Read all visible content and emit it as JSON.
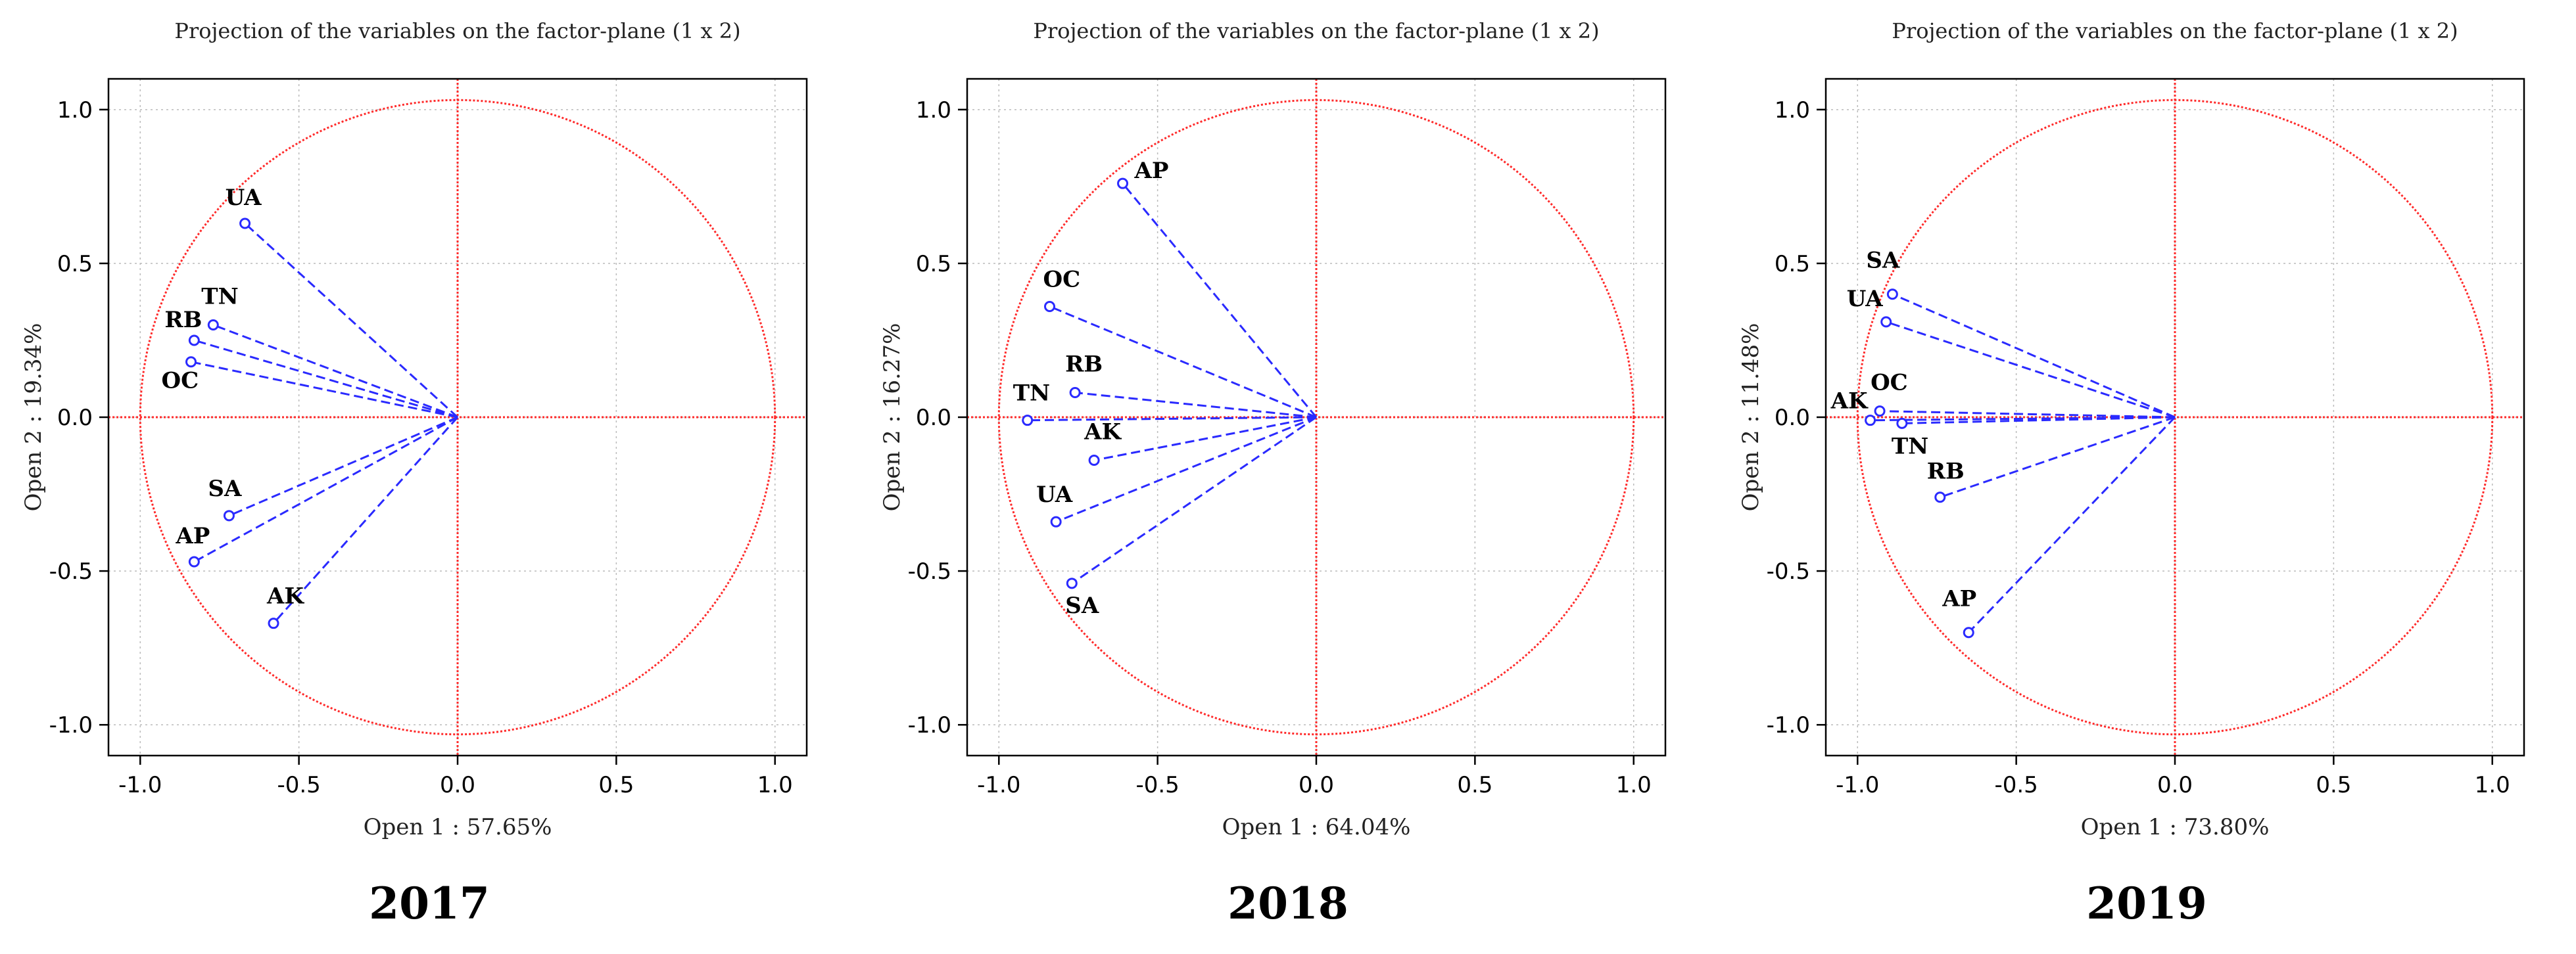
{
  "chart_data": [
    {
      "type": "scatter",
      "title": "Projection of the variables on the factor-plane (1 x 2)",
      "xlabel": "Open 1 : 57.65%",
      "ylabel": "Open 2 : 19.34%",
      "caption": "2017",
      "xlim": [
        -1.1,
        1.1
      ],
      "ylim": [
        -1.1,
        1.1
      ],
      "xticks": [
        "-1.0",
        "-0.5",
        "0.0",
        "0.5",
        "1.0"
      ],
      "yticks": [
        "1.0",
        "0.5",
        "0.0",
        "-0.5",
        "-1.0"
      ],
      "grid": true,
      "unit_circle": true,
      "points": [
        {
          "label": "UA",
          "x": -0.67,
          "y": 0.63
        },
        {
          "label": "TN",
          "x": -0.77,
          "y": 0.3
        },
        {
          "label": "RB",
          "x": -0.83,
          "y": 0.25
        },
        {
          "label": "OC",
          "x": -0.84,
          "y": 0.18
        },
        {
          "label": "SA",
          "x": -0.72,
          "y": -0.32
        },
        {
          "label": "AP",
          "x": -0.83,
          "y": -0.47
        },
        {
          "label": "AK",
          "x": -0.58,
          "y": -0.67
        }
      ]
    },
    {
      "type": "scatter",
      "title": "Projection of the variables on the factor-plane (1 x 2)",
      "xlabel": "Open 1 : 64.04%",
      "ylabel": "Open 2 : 16.27%",
      "caption": "2018",
      "xlim": [
        -1.1,
        1.1
      ],
      "ylim": [
        -1.1,
        1.1
      ],
      "xticks": [
        "-1.0",
        "-0.5",
        "0.0",
        "0.5",
        "1.0"
      ],
      "yticks": [
        "1.0",
        "0.5",
        "0.0",
        "-0.5",
        "-1.0"
      ],
      "grid": true,
      "unit_circle": true,
      "points": [
        {
          "label": "AP",
          "x": -0.61,
          "y": 0.76
        },
        {
          "label": "OC",
          "x": -0.84,
          "y": 0.36
        },
        {
          "label": "RB",
          "x": -0.76,
          "y": 0.08
        },
        {
          "label": "TN",
          "x": -0.91,
          "y": -0.01
        },
        {
          "label": "AK",
          "x": -0.7,
          "y": -0.14
        },
        {
          "label": "UA",
          "x": -0.82,
          "y": -0.34
        },
        {
          "label": "SA",
          "x": -0.77,
          "y": -0.54
        }
      ]
    },
    {
      "type": "scatter",
      "title": "Projection of the variables on the factor-plane (1 x 2)",
      "xlabel": "Open 1 : 73.80%",
      "ylabel": "Open 2 : 11.48%",
      "caption": "2019",
      "xlim": [
        -1.1,
        1.1
      ],
      "ylim": [
        -1.1,
        1.1
      ],
      "xticks": [
        "-1.0",
        "-0.5",
        "0.0",
        "0.5",
        "1.0"
      ],
      "yticks": [
        "1.0",
        "0.5",
        "0.0",
        "-0.5",
        "-1.0"
      ],
      "grid": true,
      "unit_circle": true,
      "points": [
        {
          "label": "SA",
          "x": -0.89,
          "y": 0.4
        },
        {
          "label": "UA",
          "x": -0.91,
          "y": 0.31
        },
        {
          "label": "OC",
          "x": -0.93,
          "y": 0.02
        },
        {
          "label": "AK",
          "x": -0.96,
          "y": -0.01
        },
        {
          "label": "TN",
          "x": -0.86,
          "y": -0.02
        },
        {
          "label": "RB",
          "x": -0.74,
          "y": -0.26
        },
        {
          "label": "AP",
          "x": -0.65,
          "y": -0.7
        }
      ]
    }
  ],
  "colors": {
    "vector": "#2a2aff",
    "circle": "#ff2a2a",
    "grid": "#bbbbbb",
    "axis_frame": "#000000"
  }
}
